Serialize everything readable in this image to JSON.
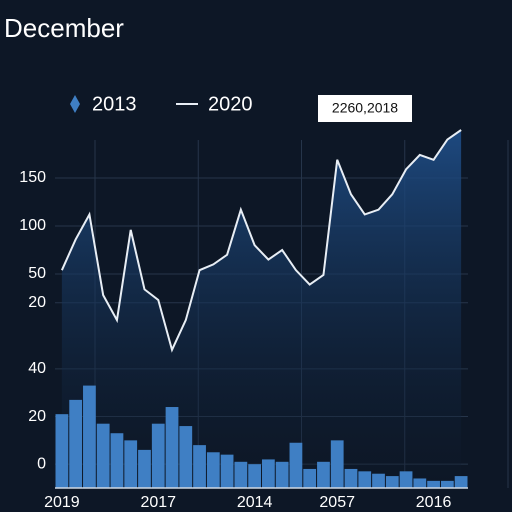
{
  "chart_data": {
    "type": "combo",
    "title": "December",
    "annotation": "2260,2018",
    "categories": [
      "2019",
      null,
      null,
      null,
      null,
      null,
      null,
      "2017",
      null,
      null,
      null,
      null,
      null,
      null,
      "2014",
      null,
      null,
      null,
      null,
      null,
      "2057",
      null,
      null,
      null,
      null,
      null,
      null,
      "2016",
      null,
      null
    ],
    "series": [
      {
        "name": "2013",
        "type": "bar",
        "color": "#3f7fc4",
        "values": [
          21,
          27,
          33,
          17,
          13,
          10,
          6,
          17,
          24,
          16,
          8,
          5,
          4,
          1,
          0,
          2,
          1,
          9,
          -2,
          1,
          10,
          -2,
          -3,
          -4,
          -5,
          -3,
          -6,
          -7,
          -7,
          -5
        ]
      },
      {
        "name": "2020",
        "type": "line",
        "color": "#e8eef5",
        "axis": "y2",
        "values": [
          54,
          86,
          112,
          28,
          2,
          96,
          34,
          23,
          -29,
          2,
          54,
          60,
          70,
          117,
          80,
          65,
          75,
          54,
          39,
          49,
          169,
          133,
          112,
          117,
          133,
          159,
          174,
          169,
          190,
          200
        ]
      }
    ],
    "ylim": [
      -10,
      45
    ],
    "yticks": [
      0,
      20,
      40
    ],
    "y2lim": [
      -50,
      200
    ],
    "y2ticks": [
      20,
      50,
      100,
      150
    ],
    "grid": true
  }
}
